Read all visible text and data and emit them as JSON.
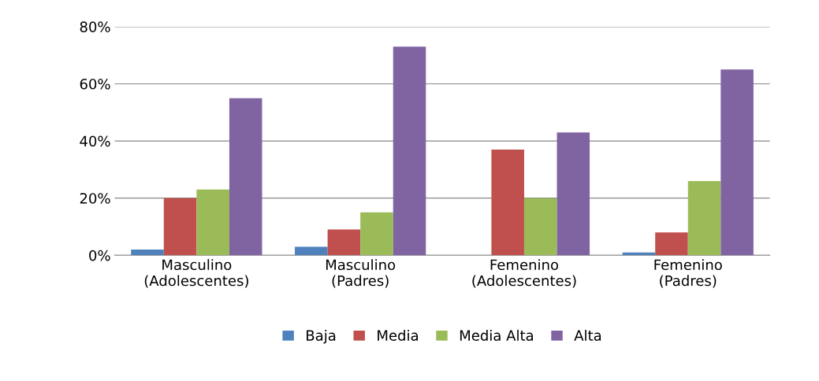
{
  "chart_data": {
    "type": "bar",
    "categories": [
      "Masculino\n(Adolescentes)",
      "Masculino\n(Padres)",
      "Femenino\n(Adolescentes)",
      "Femenino\n(Padres)"
    ],
    "series": [
      {
        "name": "Baja",
        "color": "#4f81bd",
        "values": [
          2,
          3,
          0,
          1
        ]
      },
      {
        "name": "Media",
        "color": "#c0504d",
        "values": [
          20,
          9,
          37,
          8
        ]
      },
      {
        "name": "Media Alta",
        "color": "#9bbb59",
        "values": [
          23,
          15,
          20,
          26
        ]
      },
      {
        "name": "Alta",
        "color": "#8064a2",
        "values": [
          55,
          73,
          43,
          65
        ]
      }
    ],
    "ylim": [
      0,
      80
    ],
    "yticks": [
      {
        "value": 0,
        "label": "0%"
      },
      {
        "value": 20,
        "label": "20%"
      },
      {
        "value": 40,
        "label": "40%"
      },
      {
        "value": 60,
        "label": "60%"
      },
      {
        "value": 80,
        "label": "80%"
      }
    ],
    "grid": "y",
    "legend": "bottom"
  }
}
